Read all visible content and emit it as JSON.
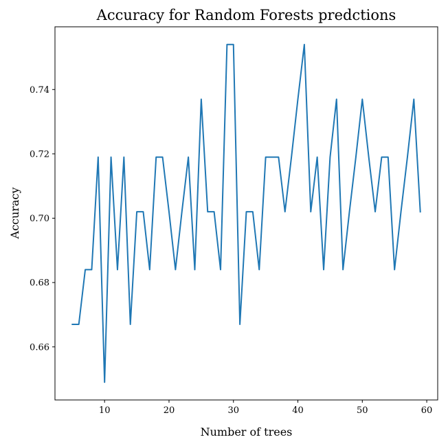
{
  "chart_data": {
    "type": "line",
    "title": "Accuracy for Random Forests predctions",
    "xlabel": "Number of trees",
    "ylabel": "Accuracy",
    "xlim": [
      2.3,
      61.7
    ],
    "ylim": [
      0.6435,
      0.7595
    ],
    "xticks": [
      10,
      20,
      30,
      40,
      50,
      60
    ],
    "yticks": [
      0.66,
      0.68,
      0.7,
      0.72,
      0.74
    ],
    "ytick_labels": [
      "0.66",
      "0.68",
      "0.70",
      "0.72",
      "0.74"
    ],
    "grid": false,
    "line_color": "#1f77b4",
    "series": [
      {
        "x": [
          5,
          6,
          7,
          8,
          9,
          10,
          11,
          12,
          13,
          14,
          15,
          16,
          17,
          18,
          19,
          20,
          21,
          22,
          23,
          24,
          25,
          26,
          27,
          28,
          29,
          30,
          31,
          32,
          33,
          34,
          35,
          36,
          37,
          38,
          39,
          40,
          41,
          42,
          43,
          44,
          45,
          46,
          47,
          48,
          49,
          50,
          51,
          52,
          53,
          54,
          55,
          56,
          57,
          58,
          59
        ],
        "values": [
          0.667,
          0.667,
          0.684,
          0.684,
          0.719,
          0.649,
          0.719,
          0.684,
          0.719,
          0.667,
          0.702,
          0.702,
          0.684,
          0.719,
          0.719,
          0.702,
          0.684,
          0.702,
          0.719,
          0.684,
          0.737,
          0.702,
          0.702,
          0.684,
          0.754,
          0.754,
          0.667,
          0.702,
          0.702,
          0.684,
          0.719,
          0.719,
          0.719,
          0.702,
          0.719,
          0.737,
          0.754,
          0.702,
          0.719,
          0.684,
          0.719,
          0.737,
          0.684,
          0.702,
          0.719,
          0.737,
          0.719,
          0.702,
          0.719,
          0.719,
          0.684,
          0.702,
          0.719,
          0.737,
          0.702
        ]
      }
    ]
  }
}
